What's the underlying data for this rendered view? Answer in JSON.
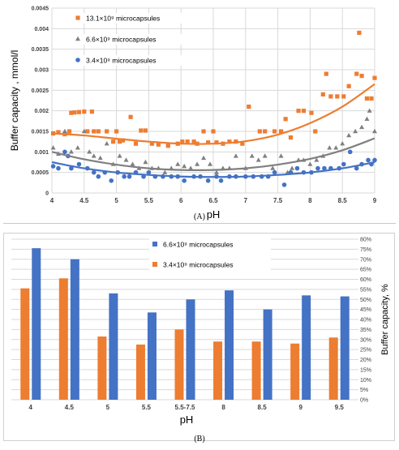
{
  "chart_data": [
    {
      "type": "scatter",
      "panel_label": "(A)",
      "xlabel": "pH",
      "ylabel": "Buffer capacity , mmol/l",
      "xlim": [
        4,
        9
      ],
      "ylim": [
        0,
        0.0045
      ],
      "xticks": [
        "4",
        "4.5",
        "5",
        "5.5",
        "6",
        "6.5",
        "7",
        "7.5",
        "8",
        "8.5",
        "9"
      ],
      "yticks": [
        "0",
        "0.0005",
        "0.001",
        "0.0015",
        "0.002",
        "0.0025",
        "0.003",
        "0.0035",
        "0.004",
        "0.0045"
      ],
      "grid": true,
      "legend_position": "top-left",
      "series": [
        {
          "name": "13.1×10⁹ microcapsules",
          "marker": "square",
          "color": "#ED7D31",
          "trend": [
            [
              4,
              0.00145
            ],
            [
              4.5,
              0.0014
            ],
            [
              5,
              0.00132
            ],
            [
              5.5,
              0.00125
            ],
            [
              6,
              0.0012
            ],
            [
              6.5,
              0.0012
            ],
            [
              7,
              0.00126
            ],
            [
              7.5,
              0.00142
            ],
            [
              8,
              0.0017
            ],
            [
              8.5,
              0.0021
            ],
            [
              9,
              0.00265
            ]
          ],
          "points": [
            [
              4.02,
              0.00145
            ],
            [
              4.1,
              0.00148
            ],
            [
              4.2,
              0.00143
            ],
            [
              4.27,
              0.0015
            ],
            [
              4.3,
              0.00195
            ],
            [
              4.35,
              0.00196
            ],
            [
              4.42,
              0.00197
            ],
            [
              4.5,
              0.00198
            ],
            [
              4.55,
              0.0015
            ],
            [
              4.62,
              0.00198
            ],
            [
              4.65,
              0.0015
            ],
            [
              4.72,
              0.0015
            ],
            [
              4.85,
              0.0015
            ],
            [
              4.95,
              0.00125
            ],
            [
              5.0,
              0.0015
            ],
            [
              5.05,
              0.00125
            ],
            [
              5.1,
              0.00128
            ],
            [
              5.22,
              0.00185
            ],
            [
              5.3,
              0.0012
            ],
            [
              5.38,
              0.00152
            ],
            [
              5.45,
              0.00152
            ],
            [
              5.55,
              0.0012
            ],
            [
              5.65,
              0.00118
            ],
            [
              5.8,
              0.00115
            ],
            [
              5.95,
              0.0012
            ],
            [
              6.02,
              0.00125
            ],
            [
              6.1,
              0.00125
            ],
            [
              6.2,
              0.00125
            ],
            [
              6.25,
              0.0012
            ],
            [
              6.35,
              0.0015
            ],
            [
              6.42,
              0.00123
            ],
            [
              6.5,
              0.0015
            ],
            [
              6.55,
              0.00123
            ],
            [
              6.65,
              0.0012
            ],
            [
              6.75,
              0.00125
            ],
            [
              6.85,
              0.00125
            ],
            [
              6.95,
              0.0012
            ],
            [
              7.05,
              0.0021
            ],
            [
              7.22,
              0.0015
            ],
            [
              7.3,
              0.0015
            ],
            [
              7.45,
              0.0015
            ],
            [
              7.55,
              0.0015
            ],
            [
              7.62,
              0.0018
            ],
            [
              7.7,
              0.00135
            ],
            [
              7.82,
              0.002
            ],
            [
              7.9,
              0.002
            ],
            [
              8.02,
              0.00195
            ],
            [
              8.08,
              0.0015
            ],
            [
              8.2,
              0.0024
            ],
            [
              8.25,
              0.0029
            ],
            [
              8.32,
              0.00235
            ],
            [
              8.42,
              0.00235
            ],
            [
              8.52,
              0.00235
            ],
            [
              8.6,
              0.0026
            ],
            [
              8.72,
              0.0029
            ],
            [
              8.76,
              0.0039
            ],
            [
              8.8,
              0.00285
            ],
            [
              8.88,
              0.0023
            ],
            [
              8.95,
              0.0023
            ],
            [
              9.0,
              0.0028
            ]
          ]
        },
        {
          "name": "6.6×10⁹ microcapsules",
          "marker": "triangle",
          "color": "#808080",
          "trend": [
            [
              4,
              0.001
            ],
            [
              4.5,
              0.00082
            ],
            [
              5,
              0.00069
            ],
            [
              5.5,
              0.0006
            ],
            [
              6,
              0.00056
            ],
            [
              6.5,
              0.00056
            ],
            [
              7,
              0.0006
            ],
            [
              7.5,
              0.00069
            ],
            [
              8,
              0.00083
            ],
            [
              8.5,
              0.00104
            ],
            [
              9,
              0.00133
            ]
          ],
          "points": [
            [
              4.02,
              0.0011
            ],
            [
              4.1,
              0.00095
            ],
            [
              4.2,
              0.0015
            ],
            [
              4.3,
              0.001
            ],
            [
              4.4,
              0.0011
            ],
            [
              4.5,
              0.0015
            ],
            [
              4.58,
              0.001
            ],
            [
              4.65,
              0.0009
            ],
            [
              4.75,
              0.00085
            ],
            [
              4.85,
              0.0012
            ],
            [
              4.95,
              0.0007
            ],
            [
              5.05,
              0.0009
            ],
            [
              5.15,
              0.0008
            ],
            [
              5.25,
              0.0007
            ],
            [
              5.35,
              0.0006
            ],
            [
              5.45,
              0.00075
            ],
            [
              5.55,
              0.0006
            ],
            [
              5.65,
              0.0006
            ],
            [
              5.75,
              0.0005
            ],
            [
              5.85,
              0.0006
            ],
            [
              5.95,
              0.0007
            ],
            [
              6.05,
              0.00065
            ],
            [
              6.15,
              0.0006
            ],
            [
              6.25,
              0.0007
            ],
            [
              6.35,
              0.00085
            ],
            [
              6.45,
              0.0007
            ],
            [
              6.55,
              0.0005
            ],
            [
              6.65,
              0.0006
            ],
            [
              6.75,
              0.0006
            ],
            [
              6.85,
              0.0009
            ],
            [
              7.0,
              0.0006
            ],
            [
              7.1,
              0.0009
            ],
            [
              7.2,
              0.0008
            ],
            [
              7.3,
              0.0009
            ],
            [
              7.42,
              0.0006
            ],
            [
              7.55,
              0.0009
            ],
            [
              7.65,
              0.0005
            ],
            [
              7.72,
              0.0006
            ],
            [
              7.82,
              0.0008
            ],
            [
              7.9,
              0.0008
            ],
            [
              8.0,
              0.0007
            ],
            [
              8.1,
              0.0008
            ],
            [
              8.2,
              0.0009
            ],
            [
              8.3,
              0.0011
            ],
            [
              8.4,
              0.0011
            ],
            [
              8.5,
              0.0012
            ],
            [
              8.6,
              0.0014
            ],
            [
              8.7,
              0.0015
            ],
            [
              8.8,
              0.0016
            ],
            [
              8.88,
              0.0018
            ],
            [
              8.92,
              0.002
            ],
            [
              9.0,
              0.0015
            ]
          ]
        },
        {
          "name": "3.4×10⁹ microcapsules",
          "marker": "circle",
          "color": "#4472C4",
          "trend": [
            [
              4,
              0.00075
            ],
            [
              4.5,
              0.0006
            ],
            [
              5,
              0.0005
            ],
            [
              5.5,
              0.00044
            ],
            [
              6,
              0.0004
            ],
            [
              6.5,
              0.00039
            ],
            [
              7,
              0.0004
            ],
            [
              7.5,
              0.00044
            ],
            [
              8,
              0.0005
            ],
            [
              8.5,
              0.0006
            ],
            [
              9,
              0.00075
            ]
          ],
          "points": [
            [
              4.02,
              0.00065
            ],
            [
              4.1,
              0.0006
            ],
            [
              4.2,
              0.001
            ],
            [
              4.25,
              0.0009
            ],
            [
              4.3,
              0.0006
            ],
            [
              4.42,
              0.0007
            ],
            [
              4.55,
              0.0006
            ],
            [
              4.65,
              0.0005
            ],
            [
              4.72,
              0.0004
            ],
            [
              4.82,
              0.0005
            ],
            [
              4.92,
              0.0003
            ],
            [
              5.02,
              0.0005
            ],
            [
              5.12,
              0.0004
            ],
            [
              5.2,
              0.0004
            ],
            [
              5.3,
              0.0005
            ],
            [
              5.42,
              0.0004
            ],
            [
              5.5,
              0.0005
            ],
            [
              5.6,
              0.0004
            ],
            [
              5.72,
              0.0004
            ],
            [
              5.85,
              0.0004
            ],
            [
              5.95,
              0.0004
            ],
            [
              6.05,
              0.0003
            ],
            [
              6.2,
              0.0004
            ],
            [
              6.3,
              0.0004
            ],
            [
              6.42,
              0.0003
            ],
            [
              6.55,
              0.0004
            ],
            [
              6.62,
              0.0003
            ],
            [
              6.75,
              0.0004
            ],
            [
              6.85,
              0.0004
            ],
            [
              7.0,
              0.0004
            ],
            [
              7.12,
              0.0004
            ],
            [
              7.25,
              0.0004
            ],
            [
              7.35,
              0.0004
            ],
            [
              7.45,
              0.0005
            ],
            [
              7.6,
              0.0002
            ],
            [
              7.7,
              0.0005
            ],
            [
              7.8,
              0.0006
            ],
            [
              7.9,
              0.0005
            ],
            [
              8.02,
              0.0005
            ],
            [
              8.12,
              0.0006
            ],
            [
              8.22,
              0.0006
            ],
            [
              8.32,
              0.0006
            ],
            [
              8.45,
              0.0006
            ],
            [
              8.52,
              0.0007
            ],
            [
              8.62,
              0.001
            ],
            [
              8.72,
              0.0006
            ],
            [
              8.8,
              0.0007
            ],
            [
              8.9,
              0.0008
            ],
            [
              8.95,
              0.0007
            ],
            [
              9.0,
              0.0008
            ]
          ]
        }
      ]
    },
    {
      "type": "bar",
      "panel_label": "(B)",
      "xlabel": "pH",
      "ylabel": "Buffer capacity, %",
      "ylim": [
        0,
        80
      ],
      "yticks": [
        "0%",
        "5%",
        "10%",
        "15%",
        "20%",
        "25%",
        "30%",
        "35%",
        "40%",
        "45%",
        "50%",
        "55%",
        "60%",
        "65%",
        "70%",
        "75%",
        "80%"
      ],
      "grid": true,
      "legend_position": "top-center",
      "categories": [
        "4",
        "4.5",
        "5",
        "5.5",
        "5.5-7.5",
        "8",
        "8.5",
        "9",
        "9.5"
      ],
      "series": [
        {
          "name": "6.6×10⁹ microcapsules",
          "color": "#4472C4",
          "values": [
            75.5,
            70,
            53,
            43.5,
            50,
            54.5,
            45,
            52,
            51.5
          ]
        },
        {
          "name": "3.4×10⁹ microcapsules",
          "color": "#ED7D31",
          "values": [
            55.5,
            60.5,
            31.5,
            27.5,
            35,
            29,
            29,
            28,
            31
          ]
        }
      ]
    }
  ]
}
